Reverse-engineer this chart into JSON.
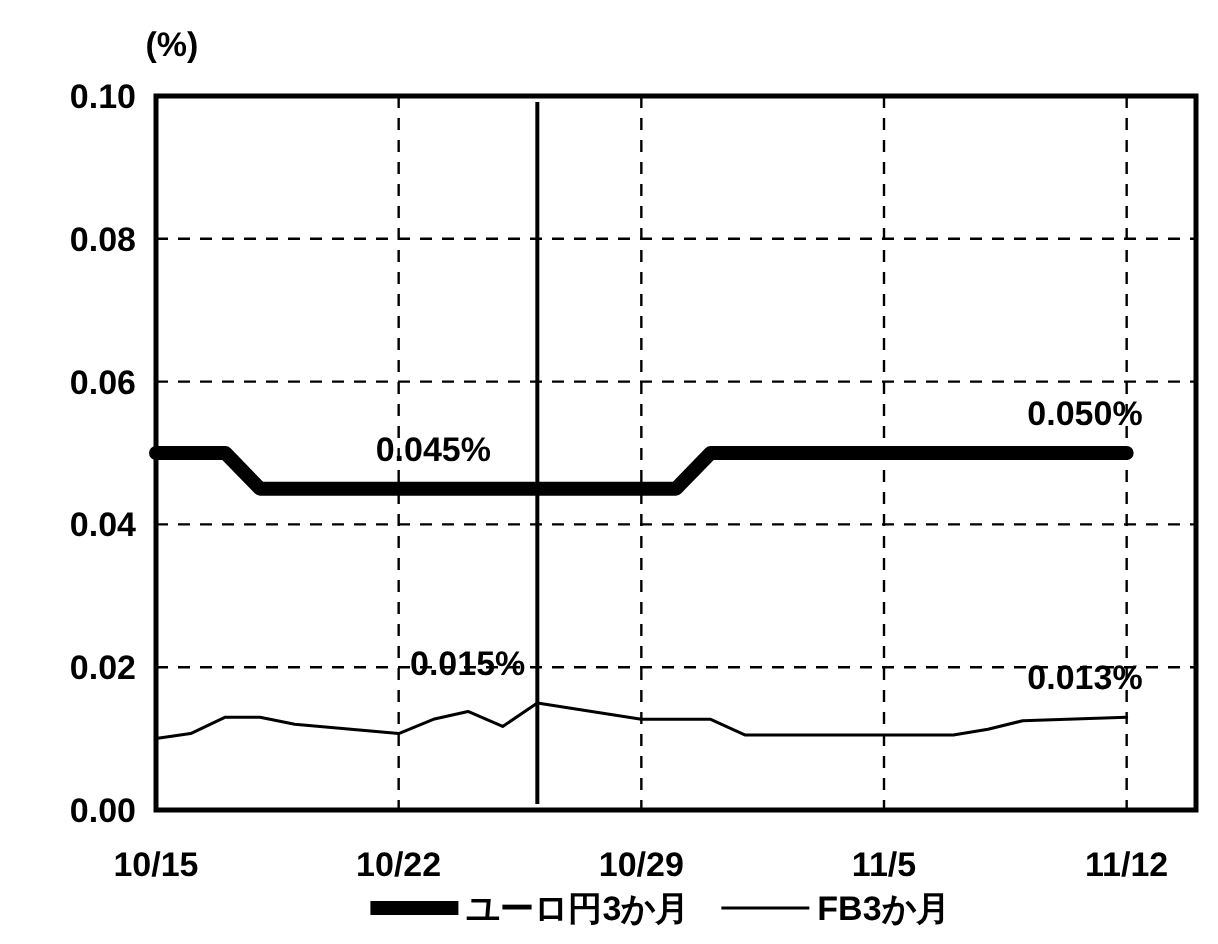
{
  "chart_data": {
    "type": "line",
    "ylabel": "(%)",
    "xlim": [
      "--10-15",
      "--11-14"
    ],
    "xticks": [
      {
        "value": "--10-15",
        "label": "10/15"
      },
      {
        "value": "--10-22",
        "label": "10/22"
      },
      {
        "value": "--10-29",
        "label": "10/29"
      },
      {
        "value": "--11-05",
        "label": "11/5"
      },
      {
        "value": "--11-12",
        "label": "11/12"
      }
    ],
    "ylim": [
      0,
      0.1
    ],
    "yticks": [
      {
        "value": 0,
        "label": "0.00"
      },
      {
        "value": 0.02,
        "label": "0.02"
      },
      {
        "value": 0.04,
        "label": "0.04"
      },
      {
        "value": 0.06,
        "label": "0.06"
      },
      {
        "value": 0.08,
        "label": "0.08"
      },
      {
        "value": 0.1,
        "label": "0.10"
      }
    ],
    "grid": true,
    "legend": "bottom",
    "series": [
      {
        "name": "ユーロ円3か月",
        "color": "#000000",
        "x": [
          "--10-15",
          "--10-17",
          "--10-18",
          "--10-30",
          "--10-31",
          "--11-12"
        ],
        "values": [
          0.05,
          0.05,
          0.045,
          0.045,
          0.05,
          0.05
        ]
      },
      {
        "name": "FB3か月",
        "color": "#000000",
        "x": [
          "--10-15",
          "--10-16",
          "--10-17",
          "--10-18",
          "--10-19",
          "--10-22",
          "--10-23",
          "--10-24",
          "--10-25",
          "--10-26",
          "--10-29",
          "--10-30",
          "--10-31",
          "--11-01",
          "--11-02",
          "--11-05",
          "--11-07",
          "--11-08",
          "--11-09",
          "--11-12"
        ],
        "values": [
          0.01,
          0.0107,
          0.013,
          0.013,
          0.012,
          0.0107,
          0.0127,
          0.0138,
          0.0117,
          0.015,
          0.0127,
          0.0127,
          0.0127,
          0.0105,
          0.0105,
          0.0105,
          0.0105,
          0.0113,
          0.0125,
          0.013
        ]
      }
    ],
    "ref_lines": [
      {
        "axis": "x",
        "value": "--10-26",
        "color": "#000000"
      }
    ],
    "annotations": [
      {
        "text": "0.045%",
        "x": "--10-23",
        "y": 0.045
      },
      {
        "text": "0.050%",
        "x": "--11-12",
        "y": 0.05
      },
      {
        "text": "0.015%",
        "x": "--10-26",
        "y": 0.015
      },
      {
        "text": "0.013%",
        "x": "--11-12",
        "y": 0.013
      }
    ]
  }
}
